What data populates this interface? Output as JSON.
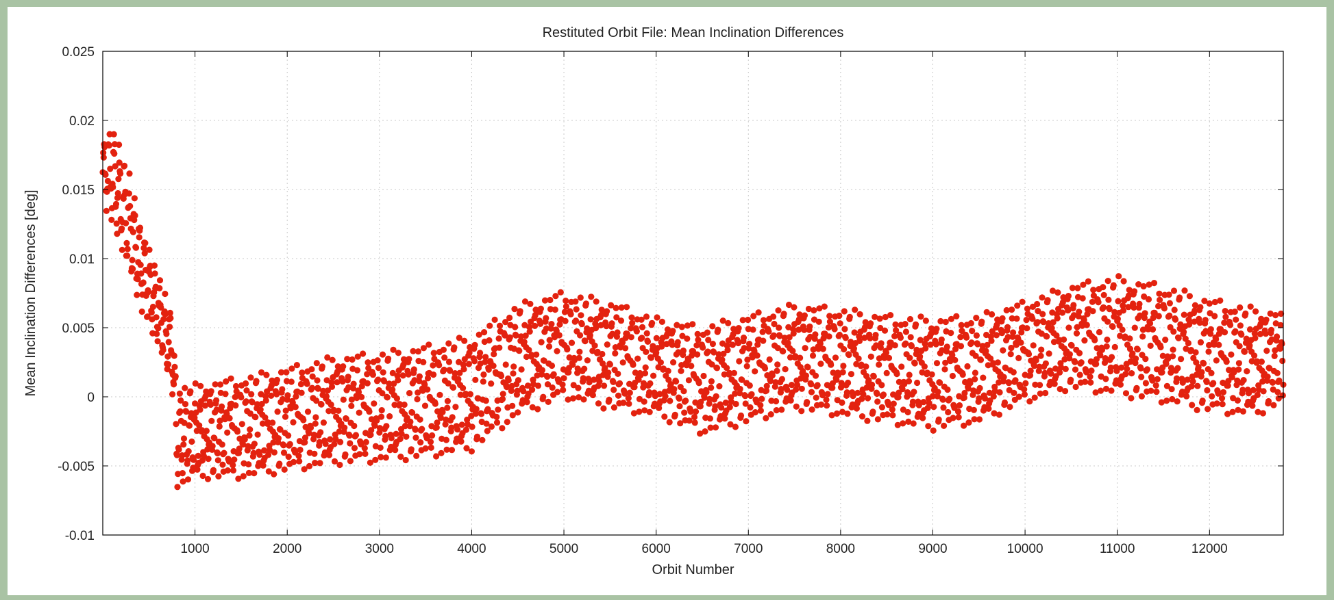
{
  "chart_data": {
    "type": "scatter",
    "title": "Restituted Orbit File: Mean Inclination Differences",
    "xlabel": "Orbit Number",
    "ylabel": "Mean Inclination Differences [deg]",
    "xlim": [
      0,
      12800
    ],
    "ylim": [
      -0.01,
      0.025
    ],
    "xticks": [
      1000,
      2000,
      3000,
      4000,
      5000,
      6000,
      7000,
      8000,
      9000,
      10000,
      11000,
      12000
    ],
    "xtick_labels": [
      "1000",
      "2000",
      "3000",
      "4000",
      "5000",
      "6000",
      "7000",
      "8000",
      "9000",
      "10000",
      "11000",
      "12000"
    ],
    "yticks": [
      -0.01,
      -0.005,
      0,
      0.005,
      0.01,
      0.015,
      0.02,
      0.025
    ],
    "ytick_labels": [
      "-0.01",
      "-0.005",
      "0",
      "0.005",
      "0.01",
      "0.015",
      "0.02",
      "0.025"
    ],
    "grid": true,
    "series": [
      {
        "color": "#e3220f",
        "envelope": {
          "x": [
            0,
            100,
            200,
            300,
            400,
            500,
            600,
            700,
            760,
            800,
            1000,
            1500,
            2000,
            2500,
            3000,
            3500,
            4000,
            4500,
            5000,
            5500,
            6000,
            6500,
            7000,
            7500,
            8000,
            8500,
            9000,
            9500,
            10000,
            10500,
            11000,
            11500,
            12000,
            12500,
            12800
          ],
          "ymax": [
            0.0185,
            0.02,
            0.018,
            0.016,
            0.013,
            0.011,
            0.009,
            0.007,
            0.0062,
            0.0008,
            0.001,
            0.0015,
            0.0022,
            0.003,
            0.0033,
            0.0038,
            0.0045,
            0.0068,
            0.0077,
            0.007,
            0.0058,
            0.0052,
            0.006,
            0.0068,
            0.0065,
            0.006,
            0.0058,
            0.006,
            0.007,
            0.0082,
            0.0088,
            0.0082,
            0.0072,
            0.0065,
            0.0062
          ],
          "ymin": [
            0.014,
            0.0125,
            0.0105,
            0.0085,
            0.0065,
            0.005,
            0.0035,
            0.0015,
            0.0,
            -0.0068,
            -0.006,
            -0.006,
            -0.0055,
            -0.005,
            -0.0048,
            -0.0045,
            -0.004,
            -0.0015,
            -0.0002,
            -0.001,
            -0.0015,
            -0.0028,
            -0.002,
            -0.001,
            -0.0015,
            -0.002,
            -0.0025,
            -0.002,
            -0.0005,
            0.0005,
            0.0,
            -0.0005,
            -0.0012,
            -0.0015,
            -0.0005
          ]
        }
      }
    ]
  }
}
